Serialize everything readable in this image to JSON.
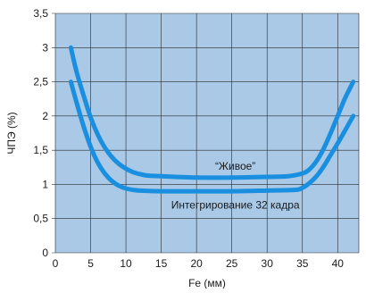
{
  "chart_data": {
    "type": "line",
    "xlabel": "Fe (мм)",
    "ylabel": "ЧПЭ (%)",
    "xlim": [
      0,
      43
    ],
    "ylim": [
      0,
      3.5
    ],
    "x_ticks": [
      0,
      5,
      10,
      15,
      20,
      25,
      30,
      35,
      40
    ],
    "y_ticks": [
      0,
      0.5,
      1,
      1.5,
      2,
      2.5,
      3,
      3.5
    ],
    "y_tick_labels": [
      "0",
      "0,5",
      "1",
      "1,5",
      "2",
      "2,5",
      "3",
      "3,5"
    ],
    "grid": true,
    "background_color": "#a9c9e6",
    "series": [
      {
        "name": "“Живое”",
        "color": "#1a8fe0",
        "x": [
          2.2,
          3,
          4,
          5,
          6,
          7,
          8,
          9,
          10,
          11,
          12,
          13,
          15,
          20,
          25,
          30,
          33,
          35,
          36,
          37,
          38,
          39,
          40,
          41,
          42.2
        ],
        "y": [
          3.0,
          2.65,
          2.3,
          1.98,
          1.73,
          1.54,
          1.4,
          1.3,
          1.23,
          1.18,
          1.15,
          1.13,
          1.12,
          1.1,
          1.1,
          1.11,
          1.12,
          1.16,
          1.22,
          1.34,
          1.52,
          1.75,
          2.0,
          2.25,
          2.5
        ]
      },
      {
        "name": "Интегрирование 32 кадра",
        "color": "#1a8fe0",
        "x": [
          2.2,
          3,
          4,
          5,
          6,
          7,
          8,
          9,
          10,
          11,
          12,
          15,
          20,
          25,
          30,
          34,
          35,
          36,
          37,
          38,
          39,
          40,
          41,
          42.2
        ],
        "y": [
          2.5,
          2.2,
          1.85,
          1.55,
          1.32,
          1.16,
          1.05,
          0.98,
          0.94,
          0.92,
          0.91,
          0.9,
          0.9,
          0.9,
          0.91,
          0.92,
          0.95,
          1.02,
          1.12,
          1.26,
          1.43,
          1.6,
          1.78,
          2.0
        ]
      }
    ],
    "annotations": [
      {
        "text": "“Живое”",
        "x": 25.5,
        "y": 1.27
      },
      {
        "text": "Интегрирование 32 кадра",
        "x": 25.5,
        "y": 0.7
      }
    ]
  }
}
